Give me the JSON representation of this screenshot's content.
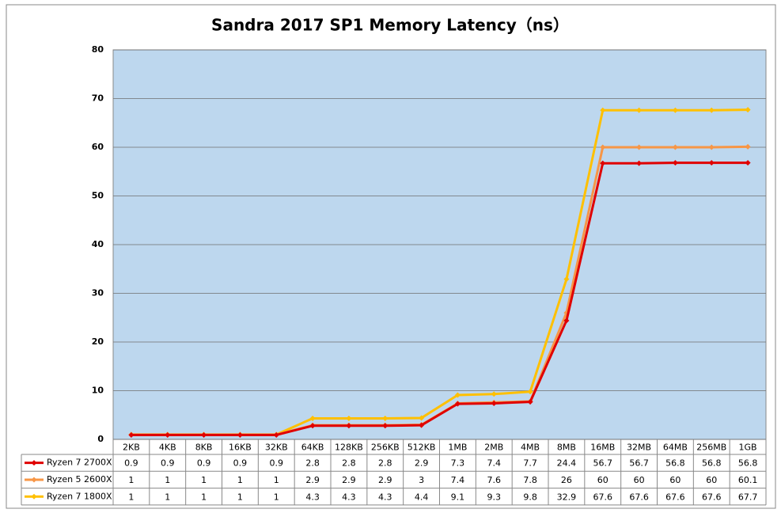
{
  "chart_data": {
    "type": "line",
    "title": "Sandra 2017 SP1 Memory Latency（ns）",
    "categories": [
      "2KB",
      "4KB",
      "8KB",
      "16KB",
      "32KB",
      "64KB",
      "128KB",
      "256KB",
      "512KB",
      "1MB",
      "2MB",
      "4MB",
      "8MB",
      "16MB",
      "32MB",
      "64MB",
      "256MB",
      "1GB"
    ],
    "series": [
      {
        "name": "Ryzen 7 2700X",
        "color": "#e00000",
        "values": [
          0.9,
          0.9,
          0.9,
          0.9,
          0.9,
          2.8,
          2.8,
          2.8,
          2.9,
          7.3,
          7.4,
          7.7,
          24.4,
          56.7,
          56.7,
          56.8,
          56.8,
          56.8
        ]
      },
      {
        "name": "Ryzen 5 2600X",
        "color": "#f79646",
        "values": [
          1,
          1,
          1,
          1,
          1,
          2.9,
          2.9,
          2.9,
          3,
          7.4,
          7.6,
          7.8,
          26,
          60,
          60,
          60,
          60,
          60.1
        ]
      },
      {
        "name": "Ryzen 7 1800X",
        "color": "#ffc000",
        "values": [
          1,
          1,
          1,
          1,
          1,
          4.3,
          4.3,
          4.3,
          4.4,
          9.1,
          9.3,
          9.8,
          32.9,
          67.6,
          67.6,
          67.6,
          67.6,
          67.7
        ]
      }
    ],
    "ylim": [
      0,
      80
    ],
    "yticks": [
      0,
      10,
      20,
      30,
      40,
      50,
      60,
      70,
      80
    ],
    "grid": true,
    "plot_background": "#bdd7ee"
  }
}
